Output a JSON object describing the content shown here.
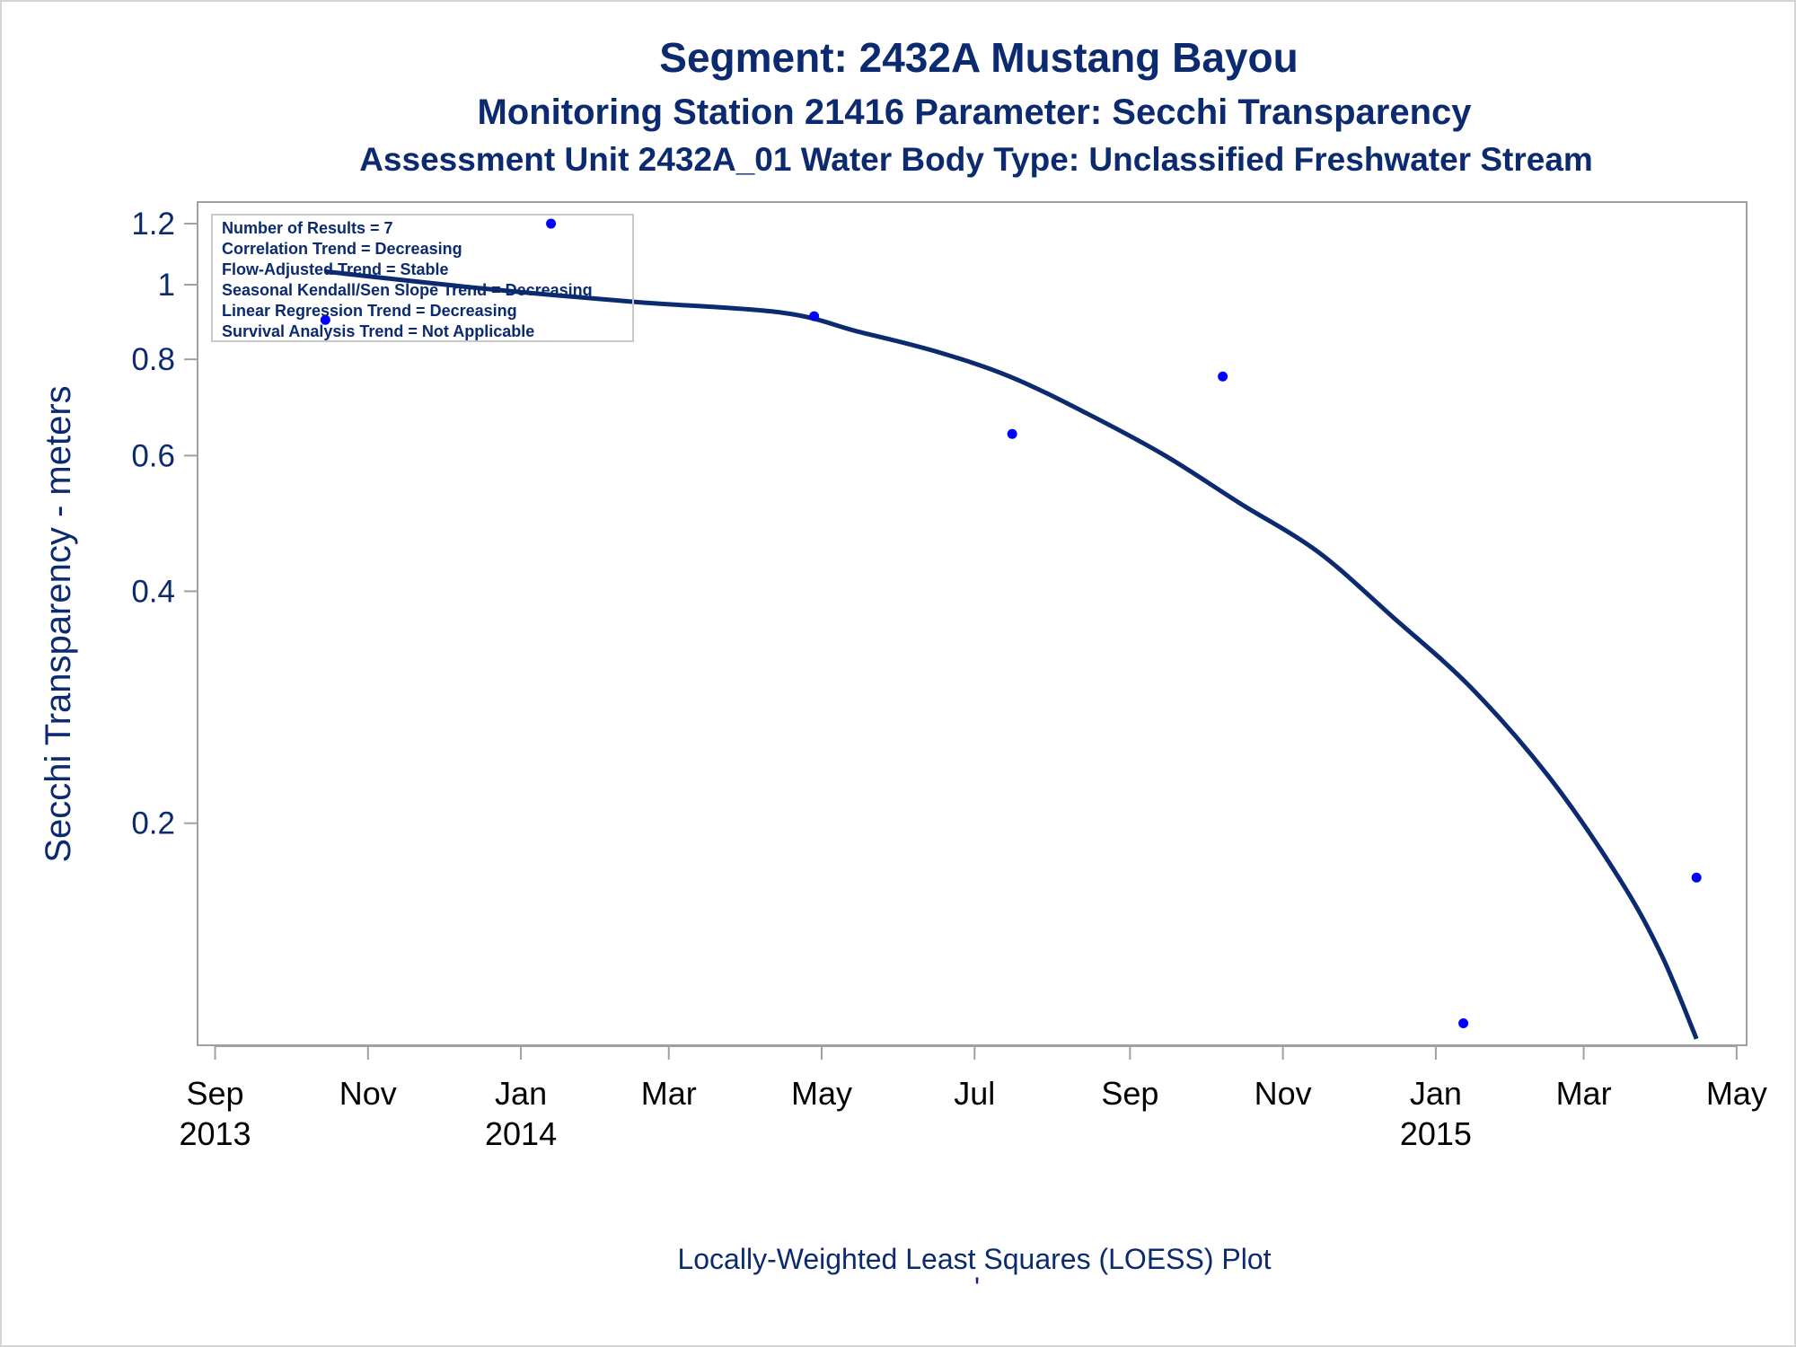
{
  "titles": {
    "line1": "Segment: 2432A  Mustang Bayou",
    "line2": "Monitoring Station 21416 Parameter: Secchi Transparency",
    "line3": "Assessment Unit 2432A_01   Water Body Type: Unclassified Freshwater Stream"
  },
  "footnote": {
    "text": "Locally-Weighted Least Squares (LOESS) Plot",
    "mark": "'"
  },
  "stats_box": [
    "Number of Results = 7",
    "Correlation Trend = Decreasing",
    "Flow-Adjusted Trend = Stable",
    "Seasonal Kendall/Sen Slope Trend = Decreasing",
    "Linear Regression Trend = Decreasing",
    "Survival Analysis Trend = Not Applicable"
  ],
  "colors": {
    "text": "#0b2a6f",
    "points": "#0000ff",
    "loess_line": "#0b2a6f",
    "frame": "#a0a0a0"
  },
  "chart_data": {
    "type": "scatter",
    "title": "Segment: 2432A  Mustang Bayou",
    "xlabel": "",
    "ylabel": "Secchi Transparency - meters",
    "y_scale": "log",
    "ylim": [
      0.103,
      1.28
    ],
    "xlim": [
      "2013-08-25",
      "2015-05-05"
    ],
    "y_ticks": [
      0.2,
      0.4,
      0.6,
      0.8,
      1,
      1.2
    ],
    "y_tick_labels": [
      "0.2",
      "0.4",
      "0.6",
      "0.8",
      "1",
      "1.2"
    ],
    "x_ticks": [
      {
        "date": "2013-09-01",
        "label": "Sep",
        "year": "2013"
      },
      {
        "date": "2013-11-01",
        "label": "Nov",
        "year": ""
      },
      {
        "date": "2014-01-01",
        "label": "Jan",
        "year": "2014"
      },
      {
        "date": "2014-03-01",
        "label": "Mar",
        "year": ""
      },
      {
        "date": "2014-05-01",
        "label": "May",
        "year": ""
      },
      {
        "date": "2014-07-01",
        "label": "Jul",
        "year": ""
      },
      {
        "date": "2014-09-01",
        "label": "Sep",
        "year": ""
      },
      {
        "date": "2014-11-01",
        "label": "Nov",
        "year": ""
      },
      {
        "date": "2015-01-01",
        "label": "Jan",
        "year": "2015"
      },
      {
        "date": "2015-03-01",
        "label": "Mar",
        "year": ""
      },
      {
        "date": "2015-05-01",
        "label": "May",
        "year": ""
      }
    ],
    "points": [
      {
        "x": "2013-10-15",
        "y": 0.9
      },
      {
        "x": "2014-01-13",
        "y": 1.2
      },
      {
        "x": "2014-04-28",
        "y": 0.91
      },
      {
        "x": "2014-07-16",
        "y": 0.64
      },
      {
        "x": "2014-10-08",
        "y": 0.76
      },
      {
        "x": "2015-01-12",
        "y": 0.11
      },
      {
        "x": "2015-04-15",
        "y": 0.17
      }
    ],
    "loess_curve": [
      {
        "x": "2013-10-15",
        "y": 1.04
      },
      {
        "x": "2013-12-15",
        "y": 0.99
      },
      {
        "x": "2014-02-15",
        "y": 0.95
      },
      {
        "x": "2014-04-15",
        "y": 0.92
      },
      {
        "x": "2014-05-15",
        "y": 0.87
      },
      {
        "x": "2014-06-15",
        "y": 0.82
      },
      {
        "x": "2014-07-15",
        "y": 0.76
      },
      {
        "x": "2014-08-15",
        "y": 0.68
      },
      {
        "x": "2014-09-15",
        "y": 0.6
      },
      {
        "x": "2014-10-15",
        "y": 0.52
      },
      {
        "x": "2014-11-15",
        "y": 0.45
      },
      {
        "x": "2014-12-15",
        "y": 0.37
      },
      {
        "x": "2015-01-15",
        "y": 0.3
      },
      {
        "x": "2015-02-15",
        "y": 0.23
      },
      {
        "x": "2015-03-15",
        "y": 0.17
      },
      {
        "x": "2015-04-01",
        "y": 0.135
      },
      {
        "x": "2015-04-15",
        "y": 0.105
      }
    ],
    "grid": false,
    "legend": "top-left"
  }
}
